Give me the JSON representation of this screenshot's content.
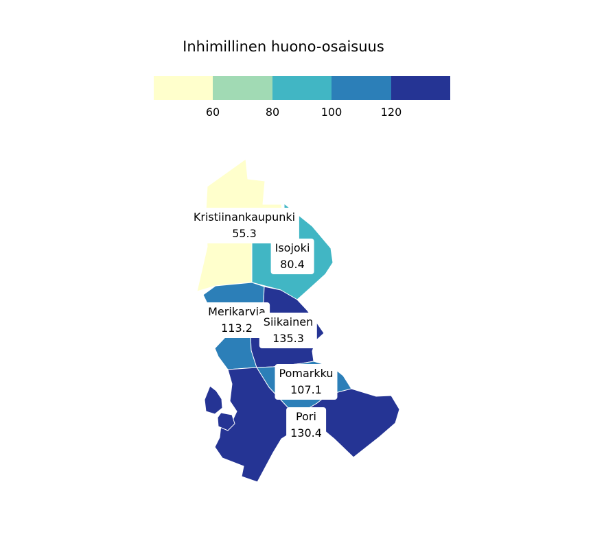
{
  "legend": {
    "title": "Inhimillinen huono-osaisuus",
    "bins": [
      {
        "color": "#ffffcc"
      },
      {
        "color": "#a1dab4"
      },
      {
        "color": "#41b6c4"
      },
      {
        "color": "#2c7fb8"
      },
      {
        "color": "#253494"
      }
    ],
    "ticks": [
      "60",
      "80",
      "100",
      "120"
    ]
  },
  "regions": [
    {
      "name": "Kristiinankaupunki",
      "value": "55.3"
    },
    {
      "name": "Isojoki",
      "value": "80.4"
    },
    {
      "name": "Merikarvia",
      "value": "113.2"
    },
    {
      "name": "Siikainen",
      "value": "135.3"
    },
    {
      "name": "Pomarkku",
      "value": "107.1"
    },
    {
      "name": "Pori",
      "value": "130.4"
    }
  ]
}
